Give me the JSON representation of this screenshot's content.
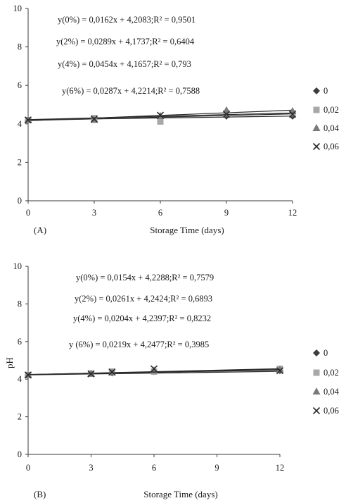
{
  "chart_data": [
    {
      "type": "scatter",
      "panel_label": "(A)",
      "xlabel": "Storage Time (days)",
      "ylabel": "",
      "xlim": [
        0,
        12
      ],
      "ylim": [
        0,
        10
      ],
      "xticks": [
        "0",
        "3",
        "6",
        "9",
        "12"
      ],
      "yticks": [
        "0",
        "2",
        "4",
        "6",
        "8",
        "10"
      ],
      "grid": false,
      "legend": "right",
      "annotations": [
        "y(0%) = 0,0162x + 4,2083;R² = 0,9501",
        "y(2%) = 0,0289x + 4,1737;R² = 0,6404",
        "y(4%) = 0,0454x + 4,1657;R² = 0,793",
        "y(6%) = 0,0287x + 4,2214;R² = 0,7588"
      ],
      "series": [
        {
          "name": "0",
          "marker": "diamond",
          "x": [
            0,
            3,
            6,
            9,
            12
          ],
          "y": [
            4.2,
            4.25,
            4.33,
            4.4,
            4.4
          ],
          "trend": {
            "slope": 0.0162,
            "intercept": 4.2083
          }
        },
        {
          "name": "0,02",
          "marker": "square",
          "x": [
            0,
            3,
            6,
            9,
            12
          ],
          "y": [
            4.2,
            4.3,
            4.12,
            4.55,
            4.55
          ],
          "trend": {
            "slope": 0.0289,
            "intercept": 4.1737
          }
        },
        {
          "name": "0,04",
          "marker": "triangle",
          "x": [
            0,
            3,
            6,
            9,
            12
          ],
          "y": [
            4.2,
            4.2,
            4.4,
            4.7,
            4.65
          ],
          "trend": {
            "slope": 0.0454,
            "intercept": 4.1657
          }
        },
        {
          "name": "0,06",
          "marker": "cross",
          "x": [
            0,
            3,
            6,
            9,
            12
          ],
          "y": [
            4.2,
            4.25,
            4.45,
            4.5,
            4.5
          ],
          "trend": {
            "slope": 0.0287,
            "intercept": 4.2214
          }
        }
      ]
    },
    {
      "type": "scatter",
      "panel_label": "(B)",
      "xlabel": "Storage Time (days)",
      "ylabel": "pH",
      "xlim": [
        0,
        12
      ],
      "ylim": [
        0,
        10
      ],
      "xticks": [
        "0",
        "3",
        "6",
        "9",
        "12"
      ],
      "yticks": [
        "0",
        "2",
        "4",
        "6",
        "8",
        "10"
      ],
      "grid": false,
      "legend": "right",
      "annotations": [
        "y(0%) = 0,0154x + 4,2288;R² = 0,7579",
        "y(2%) = 0,0261x + 4,2424;R² = 0,6893",
        "y(4%) = 0,0204x + 4,2397;R² = 0,8232",
        "y (6%) = 0,0219x + 4,2477;R² = 0,3985"
      ],
      "series": [
        {
          "name": "0",
          "marker": "diamond",
          "x": [
            0,
            3,
            4,
            6,
            12
          ],
          "y": [
            4.22,
            4.3,
            4.33,
            4.4,
            4.45
          ],
          "trend": {
            "slope": 0.0154,
            "intercept": 4.2288
          }
        },
        {
          "name": "0,02",
          "marker": "square",
          "x": [
            0,
            3,
            4,
            6,
            12
          ],
          "y": [
            4.22,
            4.3,
            4.4,
            4.4,
            4.55
          ],
          "trend": {
            "slope": 0.0261,
            "intercept": 4.2424
          }
        },
        {
          "name": "0,04",
          "marker": "triangle",
          "x": [
            0,
            3,
            4,
            6,
            12
          ],
          "y": [
            4.22,
            4.28,
            4.35,
            4.45,
            4.5
          ],
          "trend": {
            "slope": 0.0204,
            "intercept": 4.2397
          }
        },
        {
          "name": "0,06",
          "marker": "cross",
          "x": [
            0,
            3,
            4,
            6,
            12
          ],
          "y": [
            4.22,
            4.28,
            4.38,
            4.55,
            4.45
          ],
          "trend": {
            "slope": 0.0219,
            "intercept": 4.2477
          }
        }
      ]
    }
  ],
  "colors": {
    "axis": "#3a3a3a",
    "text": "#1a1a1a",
    "series": [
      "#3c3c3c",
      "#a8a8a8",
      "#7a7a7a",
      "#2a2a2a"
    ]
  }
}
